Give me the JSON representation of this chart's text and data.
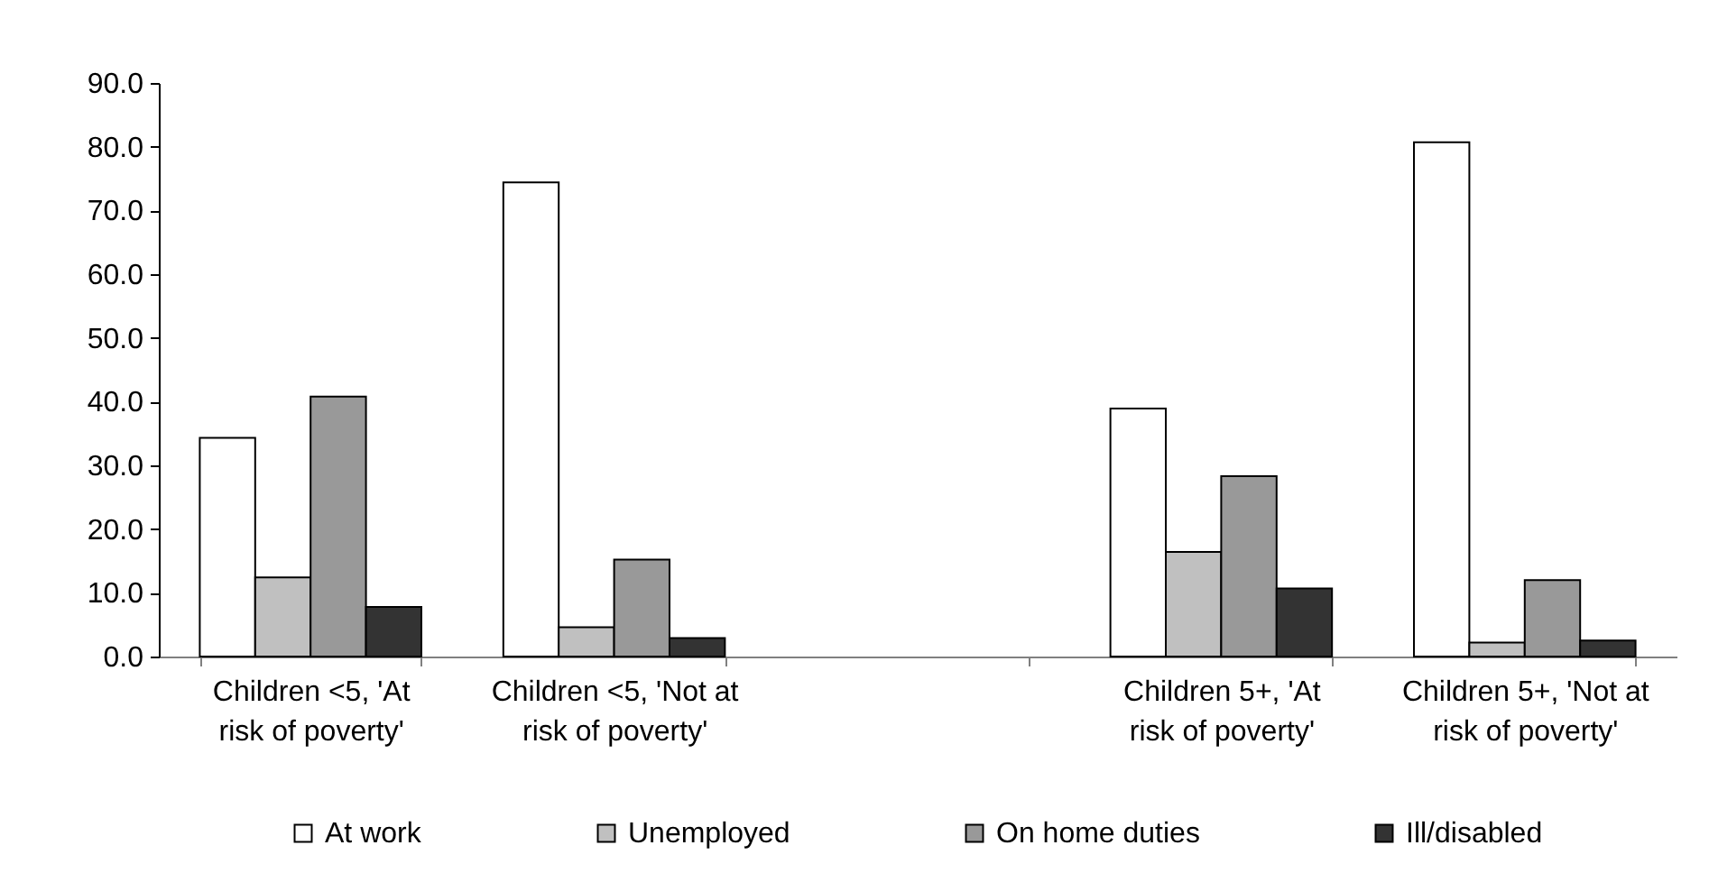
{
  "chart_data": {
    "type": "bar",
    "categories": [
      "Children <5, 'At risk of poverty'",
      "Children <5, 'Not at risk of poverty'",
      null,
      "Children 5+, 'At risk of poverty'",
      "Children 5+, 'Not at risk of poverty'"
    ],
    "series": [
      {
        "name": "At work",
        "color": "#ffffff",
        "values": [
          34.3,
          74.4,
          null,
          38.9,
          80.7
        ]
      },
      {
        "name": "Unemployed",
        "color": "#c0c0c0",
        "values": [
          12.4,
          4.6,
          null,
          16.4,
          2.2
        ]
      },
      {
        "name": "On home duties",
        "color": "#999999",
        "values": [
          40.8,
          15.2,
          null,
          28.3,
          12.0
        ]
      },
      {
        "name": "Ill/disabled",
        "color": "#333333",
        "values": [
          7.8,
          2.9,
          null,
          10.7,
          2.5
        ]
      }
    ],
    "ylim": [
      0,
      90
    ],
    "yticks": [
      {
        "value": 0,
        "label": "0.0"
      },
      {
        "value": 10,
        "label": "10.0"
      },
      {
        "value": 20,
        "label": "20.0"
      },
      {
        "value": 30,
        "label": "30.0"
      },
      {
        "value": 40,
        "label": "40.0"
      },
      {
        "value": 50,
        "label": "50.0"
      },
      {
        "value": 60,
        "label": "60.0"
      },
      {
        "value": 70,
        "label": "70.0"
      },
      {
        "value": 80,
        "label": "80.0"
      },
      {
        "value": 90,
        "label": "90.0"
      }
    ],
    "grid": false,
    "legend": "bottom"
  }
}
